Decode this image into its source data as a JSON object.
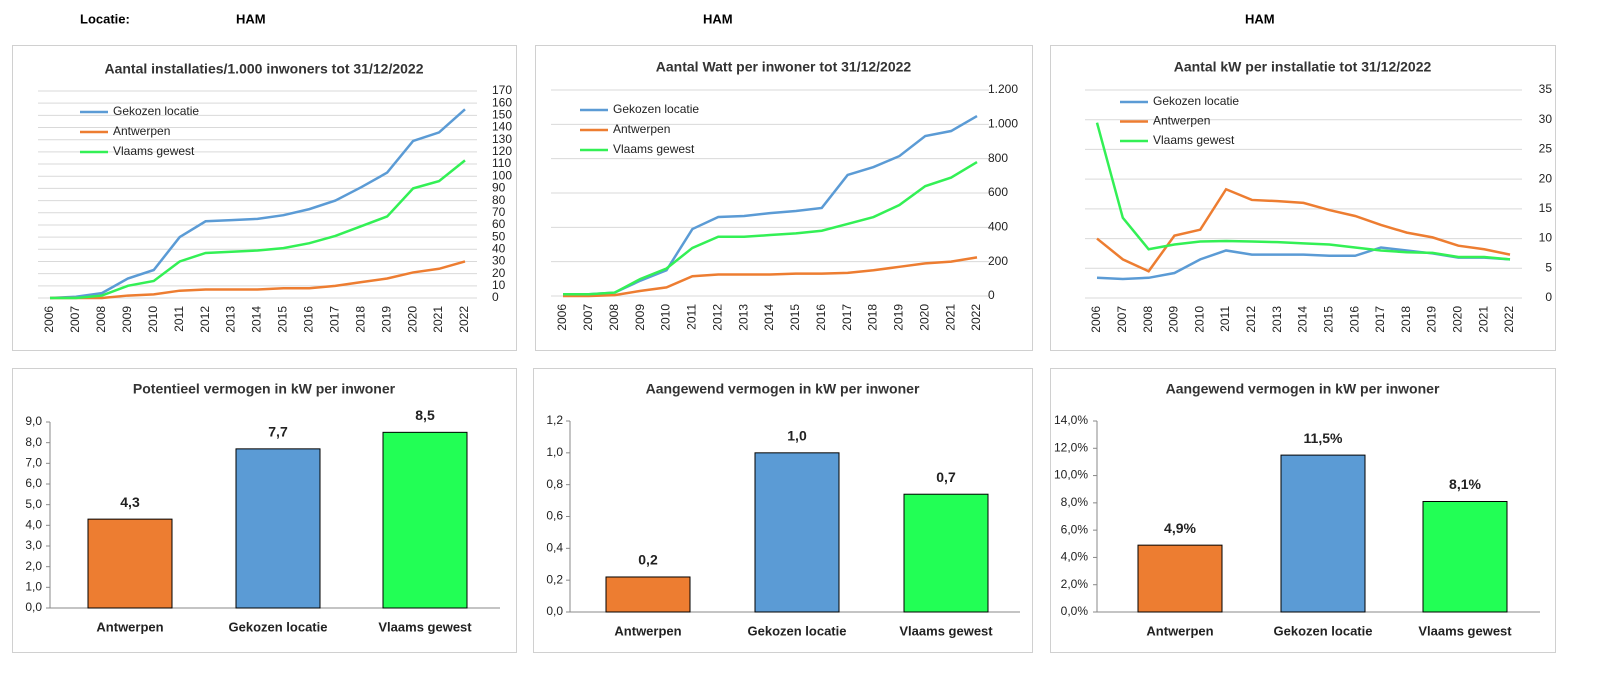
{
  "header": {
    "label": "Locatie:",
    "locations": [
      "HAM",
      "HAM",
      "HAM"
    ]
  },
  "chart_data": [
    {
      "type": "line",
      "title": "Aantal installaties/1.000  inwoners tot 31/12/2022",
      "categories": [
        "2006",
        "2007",
        "2008",
        "2009",
        "2010",
        "2011",
        "2012",
        "2013",
        "2014",
        "2015",
        "2016",
        "2017",
        "2018",
        "2019",
        "2020",
        "2021",
        "2022"
      ],
      "series": [
        {
          "name": "Gekozen locatie",
          "color": "#5b9bd5",
          "values": [
            0,
            1,
            4,
            16,
            23,
            50,
            63,
            64,
            65,
            68,
            73,
            80,
            91,
            103,
            129,
            136,
            155
          ]
        },
        {
          "name": "Antwerpen",
          "color": "#ed7d31",
          "values": [
            0,
            0,
            0,
            2,
            3,
            6,
            7,
            7,
            7,
            8,
            8,
            10,
            13,
            16,
            21,
            24,
            30
          ]
        },
        {
          "name": "Vlaams gewest",
          "color": "#33f055",
          "values": [
            0,
            0,
            2,
            10,
            14,
            30,
            37,
            38,
            39,
            41,
            45,
            51,
            59,
            67,
            90,
            96,
            113
          ]
        }
      ],
      "ylim": [
        0,
        170
      ],
      "yticks": [
        0,
        10,
        20,
        30,
        40,
        50,
        60,
        70,
        80,
        90,
        100,
        110,
        120,
        130,
        140,
        150,
        160,
        170
      ],
      "grid": true
    },
    {
      "type": "line",
      "title": "Aantal Watt per inwoner tot 31/12/2022",
      "categories": [
        "2006",
        "2007",
        "2008",
        "2009",
        "2010",
        "2011",
        "2012",
        "2013",
        "2014",
        "2015",
        "2016",
        "2017",
        "2018",
        "2019",
        "2020",
        "2021",
        "2022"
      ],
      "series": [
        {
          "name": "Gekozen locatie",
          "color": "#5b9bd5",
          "values": [
            10,
            10,
            20,
            90,
            150,
            390,
            460,
            466,
            483,
            495,
            513,
            705,
            751,
            815,
            932,
            961,
            1048
          ]
        },
        {
          "name": "Antwerpen",
          "color": "#ed7d31",
          "values": [
            0,
            0,
            5,
            30,
            50,
            115,
            125,
            125,
            125,
            130,
            130,
            135,
            150,
            170,
            190,
            200,
            225
          ]
        },
        {
          "name": "Vlaams gewest",
          "color": "#33f055",
          "values": [
            10,
            10,
            20,
            100,
            160,
            280,
            345,
            345,
            355,
            365,
            380,
            420,
            460,
            530,
            640,
            690,
            780
          ]
        }
      ],
      "ylim": [
        0,
        1200
      ],
      "yticks": [
        0,
        200,
        400,
        600,
        800,
        {
          "value": 1000,
          "label": "1.000"
        },
        {
          "value": 1200,
          "label": "1.200"
        }
      ],
      "grid": true
    },
    {
      "type": "line",
      "title": "Aantal kW per installatie  tot 31/12/2022",
      "categories": [
        "2006",
        "2007",
        "2008",
        "2009",
        "2010",
        "2011",
        "2012",
        "2013",
        "2014",
        "2015",
        "2016",
        "2017",
        "2018",
        "2019",
        "2020",
        "2021",
        "2022"
      ],
      "series": [
        {
          "name": "Gekozen locatie",
          "color": "#5b9bd5",
          "values": [
            3.4,
            3.2,
            3.4,
            4.2,
            6.5,
            8,
            7.3,
            7.3,
            7.3,
            7.1,
            7.1,
            8.5,
            8,
            7.5,
            6.8,
            6.8,
            6.5
          ]
        },
        {
          "name": "Antwerpen",
          "color": "#ed7d31",
          "values": [
            10,
            6.5,
            4.5,
            10.5,
            11.5,
            18.3,
            16.5,
            16.3,
            16,
            14.8,
            13.8,
            12.3,
            11,
            10.2,
            8.8,
            8.2,
            7.3
          ]
        },
        {
          "name": "Vlaams gewest",
          "color": "#33f055",
          "values": [
            29.5,
            13.5,
            8.2,
            9,
            9.5,
            9.6,
            9.5,
            9.4,
            9.2,
            9,
            8.5,
            8,
            7.7,
            7.6,
            6.9,
            6.9,
            6.5
          ]
        }
      ],
      "ylim": [
        0,
        35
      ],
      "yticks": [
        0,
        5,
        10,
        15,
        20,
        25,
        30,
        35
      ],
      "grid": true
    },
    {
      "type": "bar",
      "title": "Potentieel vermogen in kW per inwoner",
      "categories": [
        "Antwerpen",
        "Gekozen locatie",
        "Vlaams gewest"
      ],
      "values": [
        4.3,
        7.7,
        8.5
      ],
      "value_labels": [
        "4,3",
        "7,7",
        "8,5"
      ],
      "colors": [
        "#ed7d31",
        "#5b9bd5",
        "#22ff55"
      ],
      "ylim": [
        0,
        9
      ],
      "yticks": [
        {
          "value": 0,
          "label": "0,0"
        },
        {
          "value": 1,
          "label": "1,0"
        },
        {
          "value": 2,
          "label": "2,0"
        },
        {
          "value": 3,
          "label": "3,0"
        },
        {
          "value": 4,
          "label": "4,0"
        },
        {
          "value": 5,
          "label": "5,0"
        },
        {
          "value": 6,
          "label": "6,0"
        },
        {
          "value": 7,
          "label": "7,0"
        },
        {
          "value": 8,
          "label": "8,0"
        },
        {
          "value": 9,
          "label": "9,0"
        }
      ]
    },
    {
      "type": "bar",
      "title": "Aangewend vermogen in kW per inwoner",
      "categories": [
        "Antwerpen",
        "Gekozen locatie",
        "Vlaams gewest"
      ],
      "values": [
        0.22,
        1.0,
        0.74
      ],
      "value_labels": [
        "0,2",
        "1,0",
        "0,7"
      ],
      "colors": [
        "#ed7d31",
        "#5b9bd5",
        "#22ff55"
      ],
      "ylim": [
        0,
        1.2
      ],
      "yticks": [
        {
          "value": 0,
          "label": "0,0"
        },
        {
          "value": 0.2,
          "label": "0,2"
        },
        {
          "value": 0.4,
          "label": "0,4"
        },
        {
          "value": 0.6,
          "label": "0,6"
        },
        {
          "value": 0.8,
          "label": "0,8"
        },
        {
          "value": 1,
          "label": "1,0"
        },
        {
          "value": 1.2,
          "label": "1,2"
        }
      ]
    },
    {
      "type": "bar",
      "title": "Aangewend vermogen in kW per inwoner",
      "categories": [
        "Antwerpen",
        "Gekozen locatie",
        "Vlaams gewest"
      ],
      "values": [
        4.9,
        11.5,
        8.1
      ],
      "value_labels": [
        "4,9%",
        "11,5%",
        "8,1%"
      ],
      "colors": [
        "#ed7d31",
        "#5b9bd5",
        "#22ff55"
      ],
      "ylim": [
        0,
        14
      ],
      "yticks": [
        {
          "value": 0,
          "label": "0,0%"
        },
        {
          "value": 2,
          "label": "2,0%"
        },
        {
          "value": 4,
          "label": "4,0%"
        },
        {
          "value": 6,
          "label": "6,0%"
        },
        {
          "value": 8,
          "label": "8,0%"
        },
        {
          "value": 10,
          "label": "10,0%"
        },
        {
          "value": 12,
          "label": "12,0%"
        },
        {
          "value": 14,
          "label": "14,0%"
        }
      ]
    }
  ]
}
